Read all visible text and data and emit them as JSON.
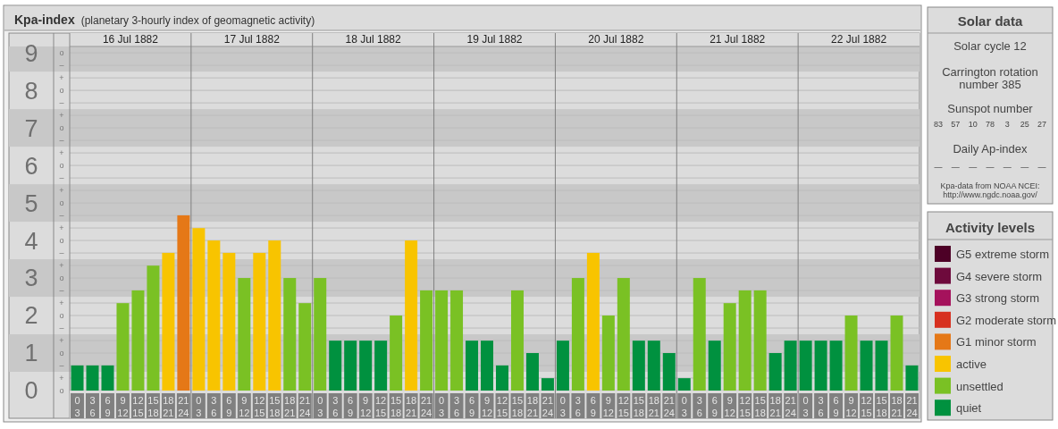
{
  "chart_data": [
    {
      "type": "bar",
      "title": "Kpa-index",
      "subtitle": "(planetary 3-hourly index of geomagnetic activity)",
      "categories": [
        "0\n3",
        "3\n6",
        "6\n9",
        "9\n12",
        "12\n15",
        "15\n18",
        "18\n21",
        "21\n24",
        "0\n3",
        "3\n6",
        "6\n9",
        "9\n12",
        "12\n15",
        "15\n18",
        "18\n21",
        "21\n24",
        "0\n3",
        "3\n6",
        "6\n9",
        "9\n12",
        "12\n15",
        "15\n18",
        "18\n21",
        "21\n24",
        "0\n3",
        "3\n6",
        "6\n9",
        "9\n12",
        "12\n15",
        "15\n18",
        "18\n21",
        "21\n24",
        "0\n3",
        "3\n6",
        "6\n9",
        "9\n12",
        "12\n15",
        "15\n18",
        "18\n21",
        "21\n24",
        "0\n3",
        "3\n6",
        "6\n9",
        "9\n12",
        "12\n15",
        "15\n18",
        "18\n21",
        "21\n24",
        "0\n3",
        "3\n6",
        "6\n9",
        "9\n12",
        "12\n15",
        "15\n18",
        "18\n21",
        "21\n24"
      ],
      "annotations": [
        "16 Jul 1882",
        "17 Jul 1882",
        "18 Jul 1882",
        "19 Jul 1882",
        "20 Jul 1882",
        "21 Jul 1882",
        "22 Jul 1882"
      ],
      "stacked": true,
      "series": [
        {
          "name": "G5 extreme storm",
          "color": "#4d0026",
          "values": [
            null,
            null,
            null,
            null,
            null,
            null,
            null,
            null,
            null,
            null,
            null,
            null,
            null,
            null,
            null,
            null,
            null,
            null,
            null,
            null,
            null,
            null,
            null,
            null,
            null,
            null,
            null,
            null,
            null,
            null,
            null,
            null,
            null,
            null,
            null,
            null,
            null,
            null,
            null,
            null,
            null,
            null,
            null,
            null,
            null,
            null,
            null,
            null,
            null,
            null,
            null,
            null,
            null,
            null,
            null,
            null
          ]
        },
        {
          "name": "G4 severe storm",
          "color": "#6e0a3c",
          "values": [
            null,
            null,
            null,
            null,
            null,
            null,
            null,
            null,
            null,
            null,
            null,
            null,
            null,
            null,
            null,
            null,
            null,
            null,
            null,
            null,
            null,
            null,
            null,
            null,
            null,
            null,
            null,
            null,
            null,
            null,
            null,
            null,
            null,
            null,
            null,
            null,
            null,
            null,
            null,
            null,
            null,
            null,
            null,
            null,
            null,
            null,
            null,
            null,
            null,
            null,
            null,
            null,
            null,
            null,
            null,
            null
          ]
        },
        {
          "name": "G3 strong storm",
          "color": "#a5125c",
          "values": [
            null,
            null,
            null,
            null,
            null,
            null,
            null,
            null,
            null,
            null,
            null,
            null,
            null,
            null,
            null,
            null,
            null,
            null,
            null,
            null,
            null,
            null,
            null,
            null,
            null,
            null,
            null,
            null,
            null,
            null,
            null,
            null,
            null,
            null,
            null,
            null,
            null,
            null,
            null,
            null,
            null,
            null,
            null,
            null,
            null,
            null,
            null,
            null,
            null,
            null,
            null,
            null,
            null,
            null,
            null,
            null
          ]
        },
        {
          "name": "G2 moderate storm",
          "color": "#d7301f",
          "values": [
            null,
            null,
            null,
            null,
            null,
            null,
            null,
            null,
            null,
            null,
            null,
            null,
            null,
            null,
            null,
            null,
            null,
            null,
            null,
            null,
            null,
            null,
            null,
            null,
            null,
            null,
            null,
            null,
            null,
            null,
            null,
            null,
            null,
            null,
            null,
            null,
            null,
            null,
            null,
            null,
            null,
            null,
            null,
            null,
            null,
            null,
            null,
            null,
            null,
            null,
            null,
            null,
            null,
            null,
            null,
            null
          ]
        },
        {
          "name": "G1 minor storm",
          "color": "#e57817",
          "values": [
            null,
            null,
            null,
            null,
            null,
            null,
            null,
            4.67,
            null,
            null,
            null,
            null,
            null,
            null,
            null,
            null,
            null,
            null,
            null,
            null,
            null,
            null,
            null,
            null,
            null,
            null,
            null,
            null,
            null,
            null,
            null,
            null,
            null,
            null,
            null,
            null,
            null,
            null,
            null,
            null,
            null,
            null,
            null,
            null,
            null,
            null,
            null,
            null,
            null,
            null,
            null,
            null,
            null,
            null,
            null,
            null
          ]
        },
        {
          "name": "active",
          "color": "#f8c400",
          "values": [
            null,
            null,
            null,
            null,
            null,
            null,
            3.67,
            null,
            4.33,
            4,
            3.67,
            null,
            3.67,
            4,
            null,
            null,
            null,
            null,
            null,
            null,
            null,
            null,
            4,
            null,
            null,
            null,
            null,
            null,
            null,
            null,
            null,
            null,
            null,
            null,
            3.67,
            null,
            null,
            null,
            null,
            null,
            null,
            null,
            null,
            null,
            null,
            null,
            null,
            null,
            null,
            null,
            null,
            null,
            null,
            null,
            null,
            null
          ]
        },
        {
          "name": "unsettled",
          "color": "#7ac124",
          "values": [
            null,
            null,
            null,
            2.33,
            2.67,
            3.33,
            null,
            null,
            null,
            null,
            null,
            3,
            null,
            null,
            3,
            2.33,
            3,
            null,
            null,
            null,
            null,
            2,
            null,
            2.67,
            2.67,
            2.67,
            null,
            null,
            null,
            2.67,
            null,
            null,
            null,
            3,
            null,
            2,
            3,
            null,
            null,
            null,
            null,
            3,
            null,
            2.33,
            2.67,
            2.67,
            null,
            null,
            null,
            null,
            null,
            2,
            null,
            null,
            2,
            null
          ]
        },
        {
          "name": "quiet",
          "color": "#00913f",
          "values": [
            0.67,
            0.67,
            0.67,
            null,
            null,
            null,
            null,
            null,
            null,
            null,
            null,
            null,
            null,
            null,
            null,
            null,
            null,
            1.33,
            1.33,
            1.33,
            1.33,
            null,
            null,
            null,
            null,
            null,
            1.33,
            1.33,
            0.67,
            null,
            1,
            0.33,
            1.33,
            null,
            null,
            null,
            null,
            1.33,
            1.33,
            1,
            0.33,
            null,
            1.33,
            null,
            null,
            null,
            1,
            1.33,
            1.33,
            1.33,
            1.33,
            null,
            1.33,
            1.33,
            null,
            0.67
          ]
        }
      ],
      "ylim": [
        0,
        9.17
      ],
      "yticks": [
        0,
        1,
        2,
        3,
        4,
        5,
        6,
        7,
        8,
        9
      ],
      "y2_categories": [
        "o",
        "–",
        "+",
        "o",
        "–",
        "+",
        "o",
        "–",
        "+",
        "o",
        "–",
        "+",
        "o",
        "–",
        "+",
        "o",
        "–",
        "+",
        "o",
        "–",
        "+",
        "o",
        "–",
        "+",
        "o",
        "–",
        "+",
        "o"
      ],
      "grid": true,
      "bands": [
        {
          "axis": "y",
          "from": 0.5,
          "to": 1.5,
          "color": "#c8c8c8"
        },
        {
          "axis": "y",
          "from": 2.5,
          "to": 3.5,
          "color": "#c8c8c8"
        },
        {
          "axis": "y",
          "from": 4.5,
          "to": 5.5,
          "color": "#c8c8c8"
        },
        {
          "axis": "y",
          "from": 6.5,
          "to": 7.5,
          "color": "#c8c8c8"
        },
        {
          "axis": "y",
          "from": 8.5,
          "to": 9.17,
          "color": "#c8c8c8"
        }
      ],
      "legend": "right",
      "legend_title": "Activity levels"
    },
    {
      "type": "other",
      "title": "Solar data",
      "annotations": [
        "Solar cycle 12",
        "Carrington rotation number 385",
        "Sunspot number",
        "83 57 10 78 3 25 27",
        "Daily Ap-index",
        "— — — — — — —",
        "Kpa-data from NOAA NCEI: http://www.ngdc.noaa.gov/"
      ]
    }
  ]
}
